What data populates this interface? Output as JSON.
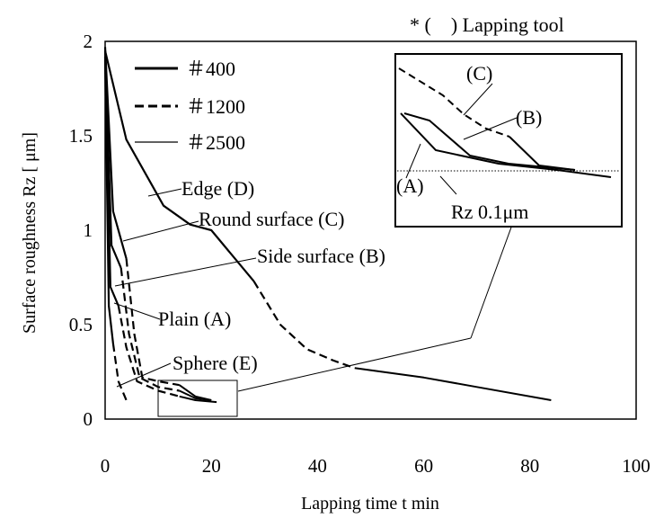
{
  "chart_data": {
    "type": "line",
    "header_note": "* (    ) Lapping tool",
    "xlabel": "Lapping time t min",
    "ylabel": "Surface roughness Rz [ μm]",
    "xlim": [
      0,
      100
    ],
    "ylim": [
      0,
      2
    ],
    "xticks": [
      0,
      20,
      40,
      60,
      80,
      100
    ],
    "yticks": [
      0,
      0.5,
      1,
      1.5,
      2
    ],
    "ytick_labels": [
      "0",
      "0.5",
      "1",
      "1.5",
      "2"
    ],
    "legend": [
      {
        "label": "＃400",
        "style": "solid-thick"
      },
      {
        "label": "＃1200",
        "style": "dashed"
      },
      {
        "label": "＃2500",
        "style": "solid-thin"
      }
    ],
    "series": [
      {
        "name": "Edge (D)",
        "segments": [
          {
            "grit": "#400",
            "points": [
              [
                0,
                1.95
              ],
              [
                4,
                1.48
              ],
              [
                11,
                1.13
              ],
              [
                16,
                1.03
              ],
              [
                20,
                1.0
              ],
              [
                28,
                0.73
              ]
            ]
          },
          {
            "grit": "#1200",
            "points": [
              [
                28,
                0.73
              ],
              [
                33,
                0.5
              ],
              [
                38,
                0.37
              ],
              [
                43,
                0.31
              ],
              [
                47,
                0.27
              ]
            ]
          },
          {
            "grit": "#2500",
            "points": [
              [
                47,
                0.27
              ],
              [
                60,
                0.22
              ],
              [
                70,
                0.17
              ],
              [
                84,
                0.1
              ]
            ]
          }
        ]
      },
      {
        "name": "Round surface (C)",
        "segments": [
          {
            "grit": "#400",
            "points": [
              [
                0,
                1.97
              ],
              [
                1.5,
                1.1
              ],
              [
                4,
                0.85
              ]
            ]
          },
          {
            "grit": "#1200",
            "points": [
              [
                4,
                0.85
              ],
              [
                5.5,
                0.45
              ],
              [
                7,
                0.22
              ],
              [
                10,
                0.2
              ],
              [
                14,
                0.18
              ]
            ]
          },
          {
            "grit": "#2500",
            "points": [
              [
                14,
                0.18
              ],
              [
                17,
                0.12
              ],
              [
                20,
                0.1
              ]
            ]
          }
        ]
      },
      {
        "name": "Side surface (B)",
        "segments": [
          {
            "grit": "#400",
            "points": [
              [
                0,
                1.95
              ],
              [
                1.2,
                0.92
              ],
              [
                3,
                0.8
              ]
            ]
          },
          {
            "grit": "#1200",
            "points": [
              [
                3,
                0.8
              ],
              [
                4.5,
                0.45
              ],
              [
                6.5,
                0.22
              ],
              [
                10,
                0.17
              ],
              [
                14,
                0.15
              ]
            ]
          },
          {
            "grit": "#2500",
            "points": [
              [
                14,
                0.15
              ],
              [
                17,
                0.11
              ],
              [
                20,
                0.1
              ]
            ]
          }
        ]
      },
      {
        "name": "Plain (A)",
        "segments": [
          {
            "grit": "#400",
            "points": [
              [
                0,
                1.92
              ],
              [
                1,
                0.7
              ],
              [
                2.5,
                0.6
              ]
            ]
          },
          {
            "grit": "#1200",
            "points": [
              [
                2.5,
                0.6
              ],
              [
                4,
                0.38
              ],
              [
                6,
                0.2
              ],
              [
                10,
                0.15
              ],
              [
                14,
                0.12
              ]
            ]
          },
          {
            "grit": "#2500",
            "points": [
              [
                14,
                0.12
              ],
              [
                17,
                0.1
              ],
              [
                21,
                0.09
              ]
            ]
          }
        ]
      },
      {
        "name": "Sphere (E)",
        "segments": [
          {
            "grit": "#400",
            "points": [
              [
                0,
                1.9
              ],
              [
                0.7,
                0.6
              ],
              [
                1.5,
                0.4
              ]
            ]
          },
          {
            "grit": "#1200",
            "points": [
              [
                1.5,
                0.4
              ],
              [
                2.5,
                0.2
              ],
              [
                4,
                0.1
              ]
            ]
          }
        ]
      }
    ],
    "annotations": [
      {
        "text": "Edge (D)",
        "x": 15,
        "y": 1.1
      },
      {
        "text": "Round surface (C)",
        "x": 2,
        "y": 1.0
      },
      {
        "text": "Side surface (B)",
        "x": 3,
        "y": 0.8
      },
      {
        "text": "Plain (A)",
        "x": 1,
        "y": 0.7
      },
      {
        "text": "Sphere (E)",
        "x": 1,
        "y": 0.2
      }
    ],
    "inset": {
      "labels": [
        "(C)",
        "(B)",
        "(A)",
        "Rz 0.1μm"
      ],
      "reference_line": "dotted at Rz 0.1μm"
    }
  }
}
